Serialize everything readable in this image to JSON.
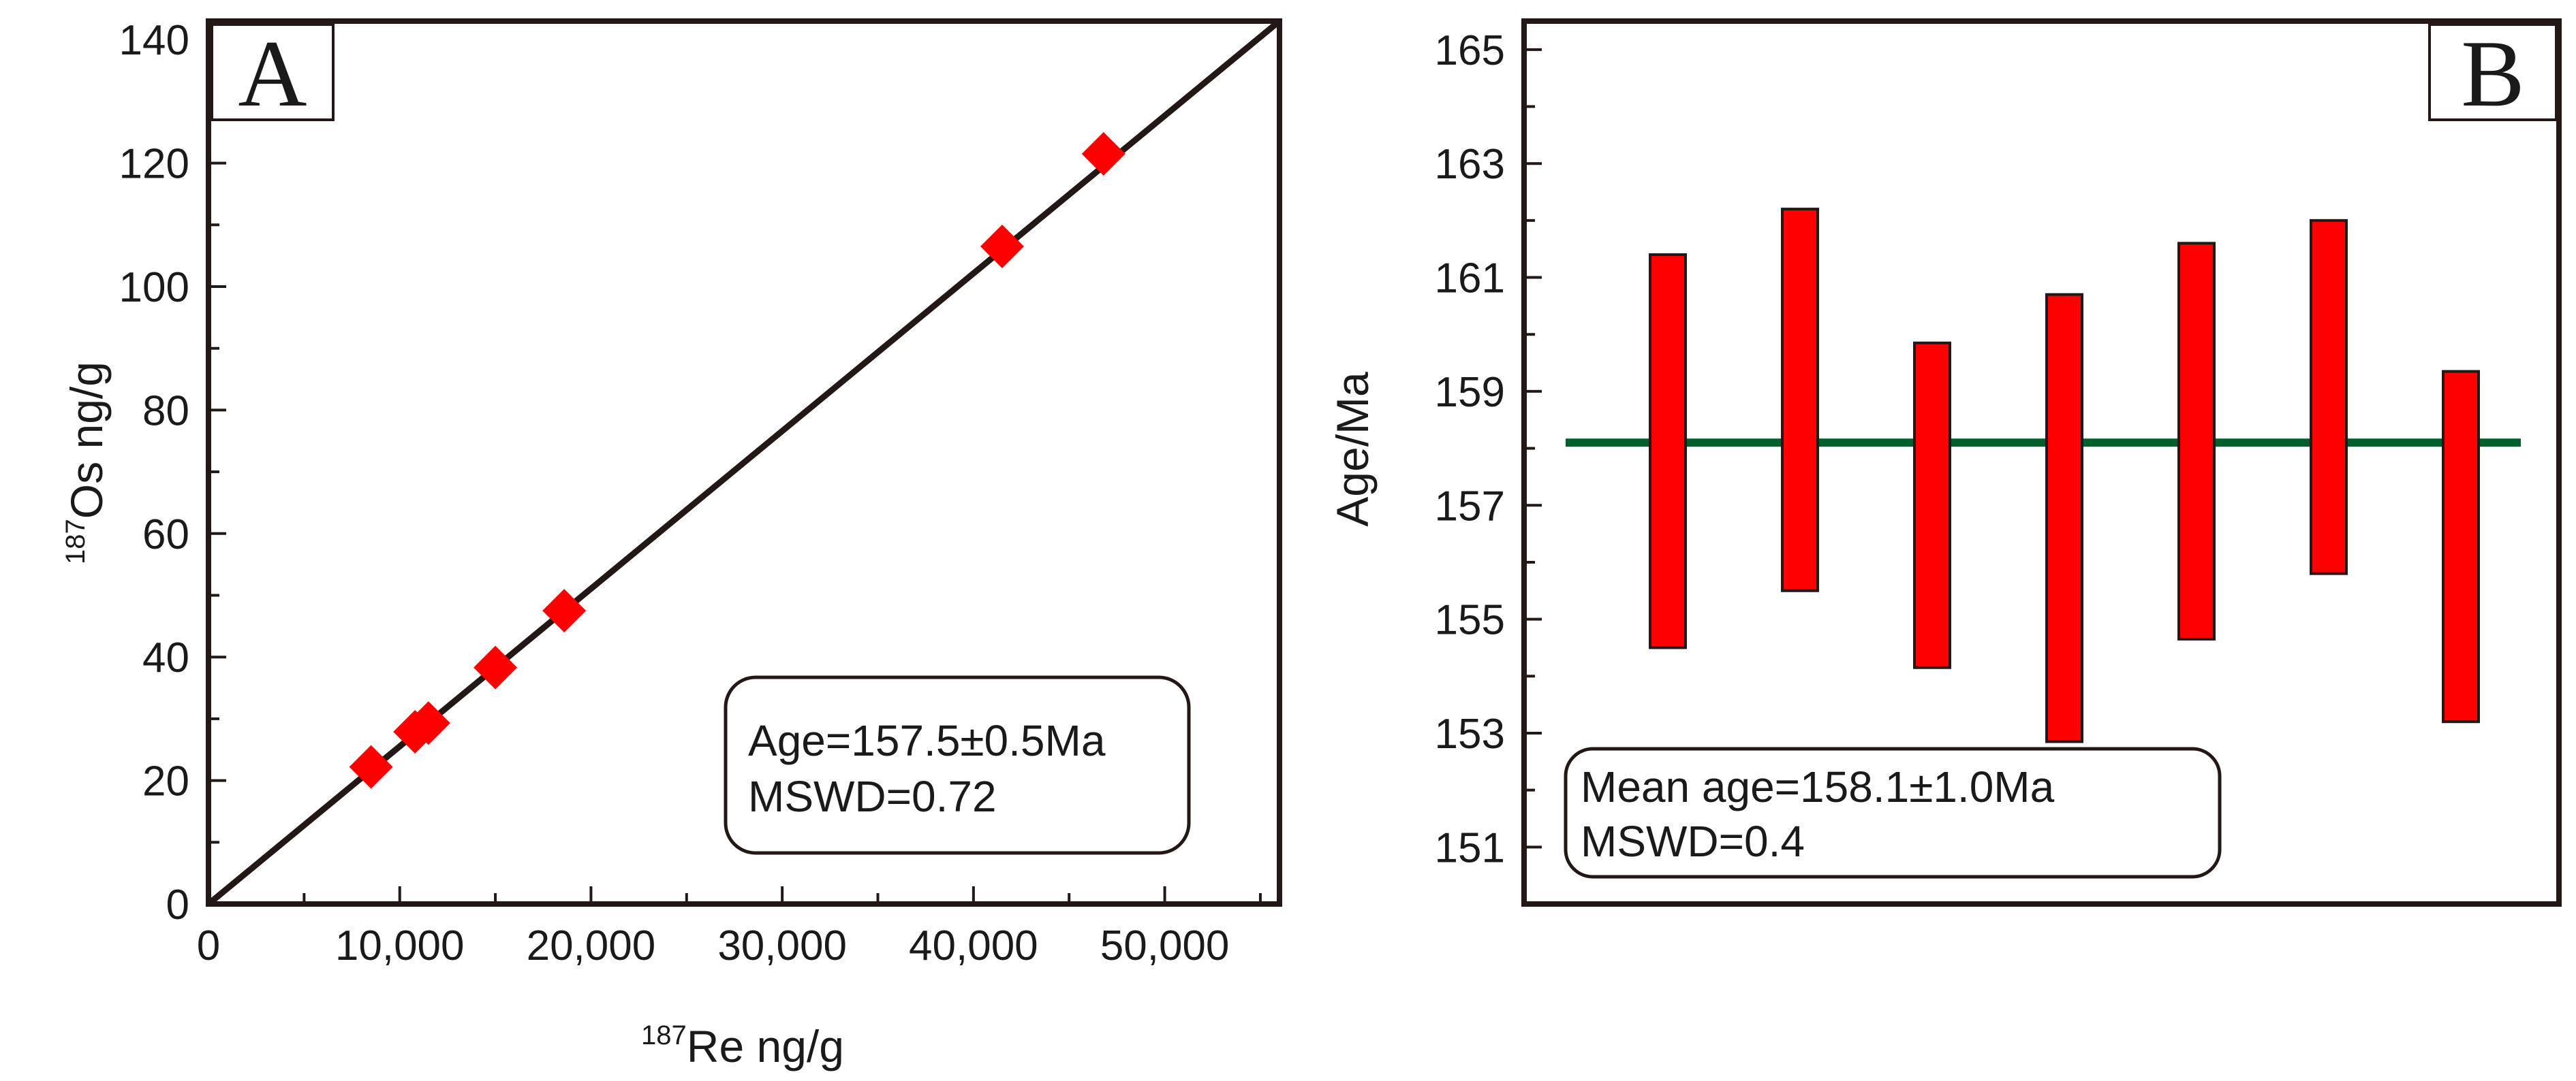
{
  "chart_data": [
    {
      "panel": "A",
      "type": "scatter",
      "xlabel_sup": "187",
      "xlabel": "Re ng/g",
      "ylabel_sup": "187",
      "ylabel": "Os ng/g",
      "xlim": [
        0,
        56000
      ],
      "ylim": [
        0,
        143
      ],
      "xticks": [
        0,
        10000,
        20000,
        30000,
        40000,
        50000
      ],
      "xtick_labels": [
        "0",
        "10,000",
        "20,000",
        "30,000",
        "40,000",
        "50,000"
      ],
      "yticks": [
        0,
        20,
        40,
        60,
        80,
        100,
        120,
        140
      ],
      "ytick_labels": [
        "0",
        "20",
        "40",
        "60",
        "80",
        "100",
        "120",
        "140"
      ],
      "points": [
        {
          "x": 8500,
          "y": 22.2
        },
        {
          "x": 10800,
          "y": 27.9
        },
        {
          "x": 11500,
          "y": 29.3
        },
        {
          "x": 15000,
          "y": 38.3
        },
        {
          "x": 18600,
          "y": 47.5
        },
        {
          "x": 41500,
          "y": 106.5
        },
        {
          "x": 46800,
          "y": 121.5
        }
      ],
      "fit_line": {
        "x0": 0,
        "y0": 0,
        "x1": 56000,
        "y1": 143
      },
      "marker_color": "#ff0000",
      "line_color": "#231815",
      "annotation": [
        "Age=157.5±0.5Ma",
        "MSWD=0.72"
      ]
    },
    {
      "panel": "B",
      "type": "error-bar",
      "ylabel": "Age/Ma",
      "ylim": [
        150,
        165.5
      ],
      "yticks": [
        151,
        153,
        155,
        157,
        159,
        161,
        163,
        165
      ],
      "ytick_labels": [
        "151",
        "153",
        "155",
        "157",
        "159",
        "161",
        "163",
        "165"
      ],
      "bars": [
        {
          "low": 154.5,
          "high": 161.4
        },
        {
          "low": 155.5,
          "high": 162.2
        },
        {
          "low": 154.15,
          "high": 159.85
        },
        {
          "low": 152.85,
          "high": 160.7
        },
        {
          "low": 154.65,
          "high": 161.6
        },
        {
          "low": 155.8,
          "high": 162.0
        },
        {
          "low": 153.2,
          "high": 159.35
        }
      ],
      "mean_age": 158.1,
      "bar_color": "#ff0000",
      "mean_line_color": "#00602b",
      "annotation": [
        "Mean age=158.1±1.0Ma",
        "MSWD=0.4"
      ]
    }
  ],
  "panel_labels": {
    "a": "A",
    "b": "B"
  }
}
